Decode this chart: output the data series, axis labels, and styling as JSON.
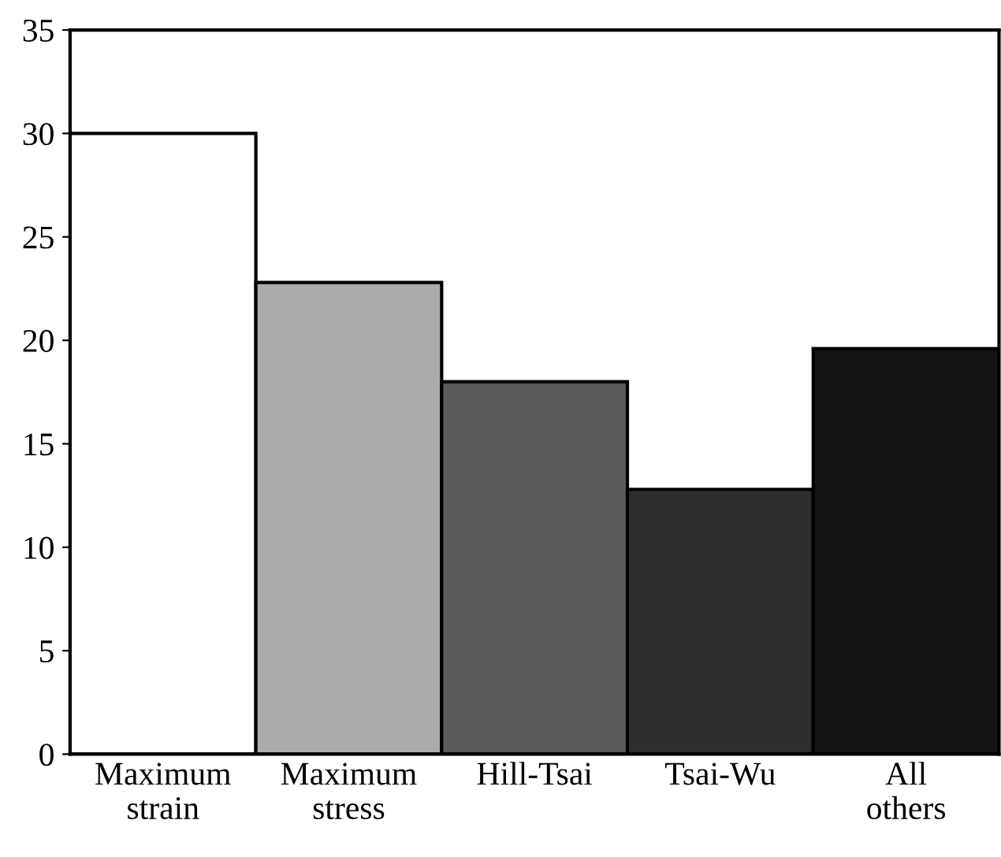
{
  "chart_data": {
    "type": "bar",
    "categories": [
      "Maximum\nstrain",
      "Maximum\nstress",
      "Hill-Tsai",
      "Tsai-Wu",
      "All\nothers"
    ],
    "values": [
      30,
      22.8,
      18,
      12.8,
      19.6
    ],
    "colors": [
      "#ffffff",
      "#ababab",
      "#5a5a5a",
      "#2e2e2e",
      "#141414"
    ],
    "ylim": [
      0,
      35
    ],
    "yticks": [
      0,
      5,
      10,
      15,
      20,
      25,
      30,
      35
    ],
    "grid": false
  }
}
